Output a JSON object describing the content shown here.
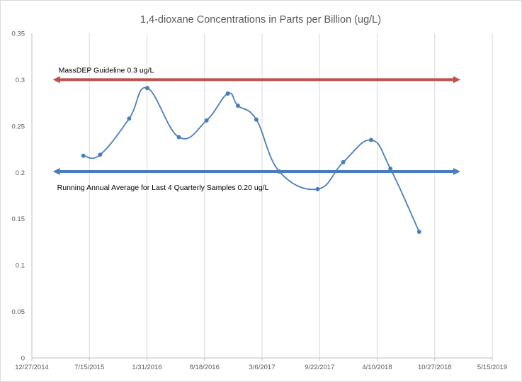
{
  "chart_data": {
    "type": "line",
    "title": "1,4-dioxane Concentrations in Parts per Billion (ug/L)",
    "xlabel": "",
    "ylabel": "",
    "x_axis": {
      "type": "date",
      "range": [
        "12/27/2014",
        "5/15/2019"
      ],
      "tick_labels": [
        "12/27/2014",
        "7/15/2015",
        "1/31/2016",
        "8/18/2016",
        "3/6/2017",
        "9/22/2017",
        "4/10/2018",
        "10/27/2018",
        "5/15/2019"
      ]
    },
    "y_axis": {
      "range": [
        0,
        0.35
      ],
      "tick_labels": [
        "0",
        "0.05",
        "0.1",
        "0.15",
        "0.2",
        "0.25",
        "0.3",
        "0.35"
      ]
    },
    "grid": "vertical",
    "series": [
      {
        "smoothed": true,
        "color": "#4a7ebb",
        "points": [
          {
            "x": "6/24/2015",
            "y": 0.218
          },
          {
            "x": "8/21/2015",
            "y": 0.219
          },
          {
            "x": "11/30/2015",
            "y": 0.258
          },
          {
            "x": "2/1/2016",
            "y": 0.291
          },
          {
            "x": "5/21/2016",
            "y": 0.238
          },
          {
            "x": "8/25/2016",
            "y": 0.256
          },
          {
            "x": "11/7/2016",
            "y": 0.285
          },
          {
            "x": "12/12/2016",
            "y": 0.272
          },
          {
            "x": "2/14/2017",
            "y": 0.257
          },
          {
            "x": "5/5/2017",
            "y": 0.201
          },
          {
            "x": "9/15/2017",
            "y": 0.182
          },
          {
            "x": "12/13/2017",
            "y": 0.211
          },
          {
            "x": "3/20/2018",
            "y": 0.235
          },
          {
            "x": "5/26/2018",
            "y": 0.204
          },
          {
            "x": "9/3/2018",
            "y": 0.136
          }
        ]
      }
    ],
    "reference_lines": [
      {
        "label": "MassDEP Guideline 0.3 ug/L",
        "y": 0.3,
        "x_start": "3/10/2015",
        "x_end": "1/24/2019",
        "color": "#c0504d",
        "arrows": "both"
      },
      {
        "label": "Running Annual Average for Last 4 Quarterly Samples 0.20 ug/L",
        "y": 0.201,
        "x_start": "3/10/2015",
        "x_end": "1/24/2019",
        "color": "#4a7ebb",
        "arrows": "both"
      }
    ]
  }
}
